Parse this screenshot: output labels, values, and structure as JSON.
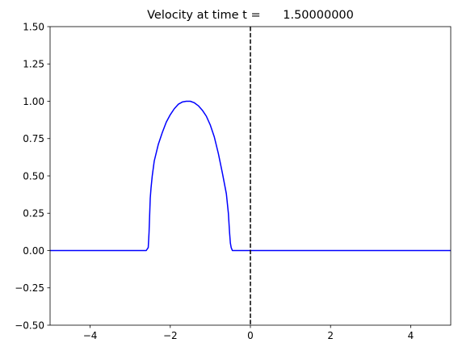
{
  "chart_data": {
    "type": "line",
    "title": "Velocity at time t =      1.50000000",
    "xlabel": "",
    "ylabel": "",
    "xlim": [
      -5,
      5
    ],
    "ylim": [
      -0.5,
      1.5
    ],
    "xticks": [
      -4,
      -2,
      0,
      2,
      4
    ],
    "xtick_labels": [
      "−4",
      "−2",
      "0",
      "2",
      "4"
    ],
    "yticks": [
      -0.5,
      -0.25,
      0.0,
      0.25,
      0.5,
      0.75,
      1.0,
      1.25,
      1.5
    ],
    "ytick_labels": [
      "−0.50",
      "−0.25",
      "0.00",
      "0.25",
      "0.50",
      "0.75",
      "1.00",
      "1.25",
      "1.50"
    ],
    "grid": false,
    "series": [
      {
        "color": "#0000ff",
        "x": [
          -5.0,
          -2.6,
          -2.55,
          -2.53,
          -2.5,
          -2.48,
          -2.45,
          -2.4,
          -2.3,
          -2.2,
          -2.1,
          -2.0,
          -1.9,
          -1.8,
          -1.7,
          -1.6,
          -1.5,
          -1.4,
          -1.3,
          -1.2,
          -1.1,
          -1.0,
          -0.9,
          -0.8,
          -0.7,
          -0.6,
          -0.55,
          -0.52,
          -0.5,
          -0.48,
          -0.45,
          -0.4,
          5.0
        ],
        "y": [
          0.0,
          0.0,
          0.02,
          0.12,
          0.35,
          0.42,
          0.5,
          0.6,
          0.71,
          0.79,
          0.86,
          0.91,
          0.95,
          0.98,
          0.995,
          1.0,
          1.0,
          0.99,
          0.97,
          0.94,
          0.9,
          0.84,
          0.76,
          0.65,
          0.52,
          0.38,
          0.25,
          0.12,
          0.05,
          0.02,
          0.0,
          0.0,
          0.0
        ]
      }
    ],
    "vline": {
      "x": 0,
      "color": "#000000",
      "style": "dashed"
    }
  }
}
